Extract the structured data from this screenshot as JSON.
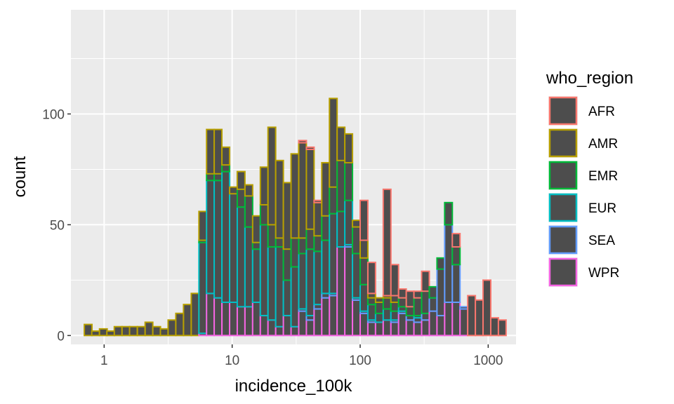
{
  "chart_data": {
    "type": "bar",
    "subtype": "stacked-histogram",
    "xlabel": "incidence_100k",
    "ylabel": "count",
    "x_scale": "log10",
    "xlim": [
      0.55,
      1650
    ],
    "ylim": [
      -4,
      147
    ],
    "x_ticks": [
      1,
      10,
      100,
      1000
    ],
    "x_tick_labels": [
      "1",
      "10",
      "100",
      "1000"
    ],
    "y_ticks": [
      0,
      50,
      100
    ],
    "y_tick_labels": [
      "0",
      "50",
      "100"
    ],
    "grid": true,
    "bin_width_log10": 0.06,
    "bin_starts": [
      0.7,
      0.8,
      0.92,
      1.05,
      1.2,
      1.38,
      1.58,
      1.82,
      2.09,
      2.4,
      2.75,
      3.16,
      3.63,
      4.17,
      4.79,
      5.5,
      6.31,
      7.24,
      8.32,
      9.55,
      10.96,
      12.59,
      14.45,
      16.6,
      19.05,
      21.88,
      25.12,
      28.84,
      33.11,
      38.02,
      43.65,
      50.12,
      57.54,
      66.07,
      75.86,
      87.1,
      100,
      114.8,
      131.8,
      151.4,
      173.8,
      199.5,
      229.1,
      263,
      302,
      346.7,
      398.1,
      457.1,
      524.8,
      602.6,
      691.8,
      794.3,
      912,
      1047,
      1202
    ],
    "series": [
      {
        "name": "WPR",
        "color": "#F564E3",
        "values": [
          0,
          0,
          0,
          0,
          0,
          0,
          0,
          0,
          0,
          0,
          0,
          0,
          0,
          0,
          0,
          1,
          19,
          17,
          15,
          15,
          13,
          13,
          15,
          9,
          7,
          4,
          9,
          4,
          11,
          7,
          12,
          17,
          18,
          40,
          40,
          16,
          10,
          6,
          6,
          7,
          6,
          10,
          7,
          6,
          7,
          11,
          9,
          15,
          15,
          12,
          0,
          0,
          0,
          0,
          0
        ]
      },
      {
        "name": "SEA",
        "color": "#619CFF",
        "values": [
          0,
          0,
          0,
          0,
          0,
          0,
          0,
          0,
          0,
          0,
          0,
          0,
          0,
          0,
          0,
          0,
          0,
          0,
          0,
          0,
          0,
          0,
          0,
          0,
          0,
          0,
          0,
          0,
          1,
          2,
          2,
          2,
          1,
          0,
          1,
          1,
          1,
          1,
          0,
          0,
          1,
          1,
          2,
          2,
          3,
          6,
          21,
          35,
          17,
          1,
          0,
          0,
          0,
          0,
          0
        ]
      },
      {
        "name": "EUR",
        "color": "#00BFC4",
        "values": [
          0,
          0,
          0,
          0,
          0,
          0,
          0,
          0,
          0,
          0,
          0,
          0,
          0,
          0,
          0,
          41,
          51,
          53,
          59,
          49,
          45,
          36,
          24,
          41,
          33,
          36,
          16,
          27,
          25,
          30,
          24,
          24,
          36,
          16,
          20,
          20,
          12,
          7,
          4,
          5,
          4,
          2,
          0,
          1,
          0,
          0,
          0,
          0,
          0,
          0,
          0,
          0,
          0,
          0,
          0
        ]
      },
      {
        "name": "EMR",
        "color": "#00BA38",
        "values": [
          0,
          0,
          0,
          0,
          0,
          0,
          0,
          0,
          0,
          0,
          0,
          0,
          0,
          0,
          0,
          1,
          3,
          3,
          3,
          0,
          8,
          14,
          3,
          9,
          10,
          4,
          14,
          13,
          7,
          9,
          7,
          11,
          12,
          23,
          17,
          12,
          12,
          3,
          5,
          5,
          4,
          4,
          4,
          8,
          10,
          5,
          5,
          10,
          8,
          0,
          0,
          0,
          0,
          0,
          0
        ]
      },
      {
        "name": "AMR",
        "color": "#B79F00",
        "values": [
          5,
          2,
          3,
          2,
          4,
          4,
          4,
          4,
          6,
          4,
          3,
          7,
          10,
          14,
          19,
          13,
          20,
          20,
          8,
          3,
          8,
          5,
          12,
          17,
          44,
          35,
          30,
          38,
          43,
          36,
          15,
          24,
          40,
          15,
          13,
          3,
          8,
          2,
          2,
          1,
          3,
          0,
          0,
          0,
          0,
          0,
          0,
          0,
          0,
          0,
          0,
          0,
          0,
          0,
          0
        ]
      },
      {
        "name": "AFR",
        "color": "#F8766D",
        "values": [
          0,
          0,
          0,
          0,
          0,
          0,
          0,
          0,
          0,
          0,
          0,
          0,
          0,
          0,
          0,
          0,
          0,
          0,
          0,
          0,
          0,
          0,
          0,
          0,
          0,
          0,
          0,
          0,
          1,
          1,
          1,
          0,
          0,
          0,
          0,
          0,
          18,
          14,
          0,
          48,
          14,
          4,
          7,
          3,
          9,
          0,
          0,
          0,
          6,
          0,
          18,
          16,
          25,
          8,
          7
        ]
      }
    ],
    "legend": {
      "title": "who_region",
      "position": "right",
      "order": [
        "AFR",
        "AMR",
        "EMR",
        "EUR",
        "SEA",
        "WPR"
      ],
      "fill": "#4D4D4D"
    },
    "bar_fill": "#4D4D4D",
    "panel_background": "#EBEBEB",
    "grid_color": "#FFFFFF"
  }
}
